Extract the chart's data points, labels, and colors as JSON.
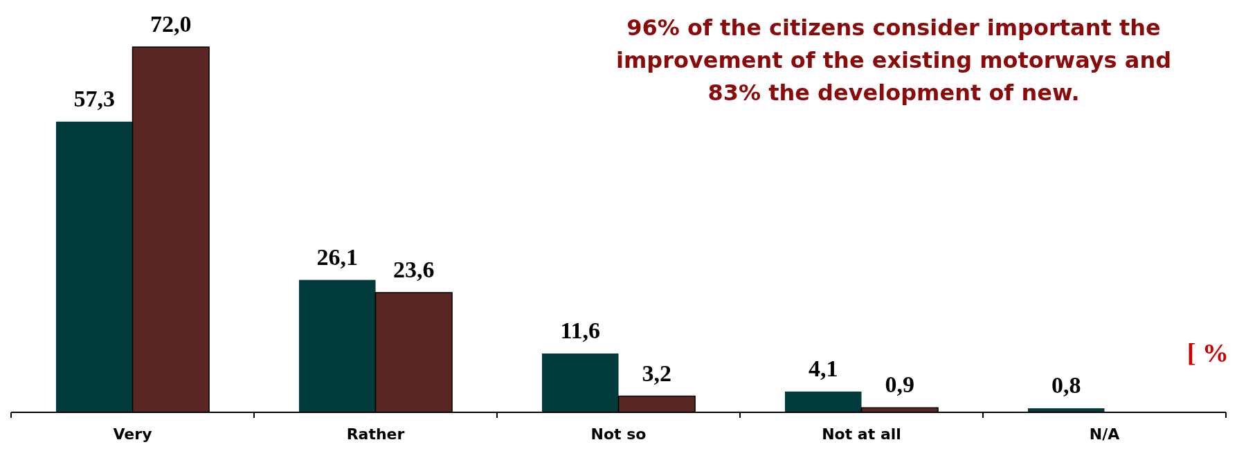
{
  "chart_data": {
    "type": "bar",
    "title": "96% of the citizens consider important the\nimprovement of the existing motorways and\n83% the development of new.",
    "categories": [
      "Very",
      "Rather",
      "Not so",
      "Not at all",
      "N/A"
    ],
    "series": [
      {
        "color": "#023b3b",
        "values": [
          57.3,
          26.1,
          11.6,
          4.1,
          0.8
        ],
        "value_labels": [
          "57,3",
          "26,1",
          "11,6",
          "4,1",
          "0,8"
        ]
      },
      {
        "color": "#5a2624",
        "values": [
          72.0,
          23.6,
          3.2,
          0.9,
          null
        ],
        "value_labels": [
          "72,0",
          "23,6",
          "3,2",
          "0,9",
          null
        ]
      }
    ],
    "annotations": [
      "[ %"
    ]
  }
}
